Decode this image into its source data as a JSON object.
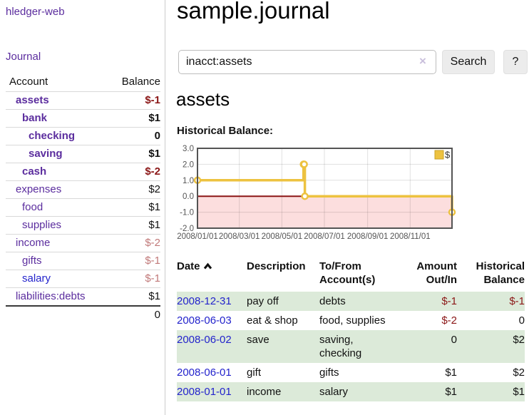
{
  "colors": {
    "link_purple": "#5b2d9e",
    "link_blue": "#2323cc",
    "negative": "#8b1717",
    "negative_light": "#c17979",
    "row_shade_green": "#dcead9",
    "chart_line_gold": "#EDC240",
    "chart_negative_region": "#fcdede",
    "chart_zero_line": "#8b1515"
  },
  "sidebar": {
    "app_title": "hledger-web",
    "nav_journal": "Journal",
    "table": {
      "col_account": "Account",
      "col_balance": "Balance",
      "rows": [
        {
          "name": "assets",
          "depth": 1,
          "strong": true,
          "name_color": "purple",
          "balance": "$-1",
          "balance_color": "neg",
          "balance_strong": true
        },
        {
          "name": "bank",
          "depth": 2,
          "strong": true,
          "name_color": "purple",
          "balance": "$1",
          "balance_color": "pos",
          "balance_strong": true
        },
        {
          "name": "checking",
          "depth": 3,
          "strong": true,
          "name_color": "purple",
          "balance": "0",
          "balance_color": "pos",
          "balance_strong": true
        },
        {
          "name": "saving",
          "depth": 3,
          "strong": true,
          "name_color": "purple",
          "balance": "$1",
          "balance_color": "pos",
          "balance_strong": true
        },
        {
          "name": "cash",
          "depth": 2,
          "strong": true,
          "name_color": "purple",
          "balance": "$-2",
          "balance_color": "neg",
          "balance_strong": true
        },
        {
          "name": "expenses",
          "depth": 1,
          "strong": false,
          "name_color": "purple",
          "balance": "$2",
          "balance_color": "pos",
          "balance_strong": false
        },
        {
          "name": "food",
          "depth": 2,
          "strong": false,
          "name_color": "purple",
          "balance": "$1",
          "balance_color": "pos",
          "balance_strong": false
        },
        {
          "name": "supplies",
          "depth": 2,
          "strong": false,
          "name_color": "purple",
          "balance": "$1",
          "balance_color": "pos",
          "balance_strong": false
        },
        {
          "name": "income",
          "depth": 1,
          "strong": false,
          "name_color": "purple",
          "balance": "$-2",
          "balance_color": "neg_light",
          "balance_strong": false
        },
        {
          "name": "gifts",
          "depth": 2,
          "strong": false,
          "name_color": "purple",
          "balance": "$-1",
          "balance_color": "neg_light",
          "balance_strong": false
        },
        {
          "name": "salary",
          "depth": 2,
          "strong": false,
          "name_color": "blue",
          "balance": "$-1",
          "balance_color": "neg_light",
          "balance_strong": false
        },
        {
          "name": "liabilities:debts",
          "depth": 1,
          "strong": false,
          "name_color": "purple",
          "balance": "$1",
          "balance_color": "pos",
          "balance_strong": false
        }
      ],
      "total": "0"
    }
  },
  "main": {
    "title": "sample.journal",
    "search": {
      "value": "inacct:assets",
      "clear_icon": "×",
      "button": "Search",
      "help": "?"
    },
    "account_heading": "assets",
    "chart_title": "Historical Balance:"
  },
  "chart_data": {
    "type": "line",
    "steps": true,
    "title": "Historical Balance:",
    "series": [
      {
        "name": "$",
        "color": "#EDC240",
        "points": [
          [
            "2008-01-01",
            1
          ],
          [
            "2008-06-01",
            2
          ],
          [
            "2008-06-02",
            2
          ],
          [
            "2008-06-03",
            0
          ],
          [
            "2008-12-31",
            -1
          ]
        ]
      }
    ],
    "x_ticks": [
      "2008/01/01",
      "2008/03/01",
      "2008/05/01",
      "2008/07/01",
      "2008/09/01",
      "2008/11/01"
    ],
    "y_ticks": [
      "3.0",
      "2.0",
      "1.0",
      "0.0",
      "-1.0",
      "-2.0"
    ],
    "xlim": [
      "2008-01-01",
      "2008-12-31"
    ],
    "ylim": [
      -2,
      3
    ],
    "grid": true,
    "legend_position": "top-right",
    "negative_region": true
  },
  "transactions": {
    "headers": {
      "date": "Date",
      "description": "Description",
      "accounts": "To/From Account(s)",
      "amount": "Amount Out/In",
      "balance": "Historical Balance"
    },
    "sort": "date-ascending",
    "rows": [
      {
        "date": "2008-12-31",
        "description": "pay off",
        "accounts": "debts",
        "amount": "$-1",
        "amount_color": "neg",
        "balance": "$-1",
        "balance_color": "neg",
        "shaded": true
      },
      {
        "date": "2008-06-03",
        "description": "eat & shop",
        "accounts": "food, supplies",
        "amount": "$-2",
        "amount_color": "neg",
        "balance": "0",
        "balance_color": "pos",
        "shaded": false
      },
      {
        "date": "2008-06-02",
        "description": "save",
        "accounts": "saving, checking",
        "amount": "0",
        "amount_color": "pos",
        "balance": "$2",
        "balance_color": "pos",
        "shaded": true
      },
      {
        "date": "2008-06-01",
        "description": "gift",
        "accounts": "gifts",
        "amount": "$1",
        "amount_color": "pos",
        "balance": "$2",
        "balance_color": "pos",
        "shaded": false
      },
      {
        "date": "2008-01-01",
        "description": "income",
        "accounts": "salary",
        "amount": "$1",
        "amount_color": "pos",
        "balance": "$1",
        "balance_color": "pos",
        "shaded": true
      }
    ]
  }
}
